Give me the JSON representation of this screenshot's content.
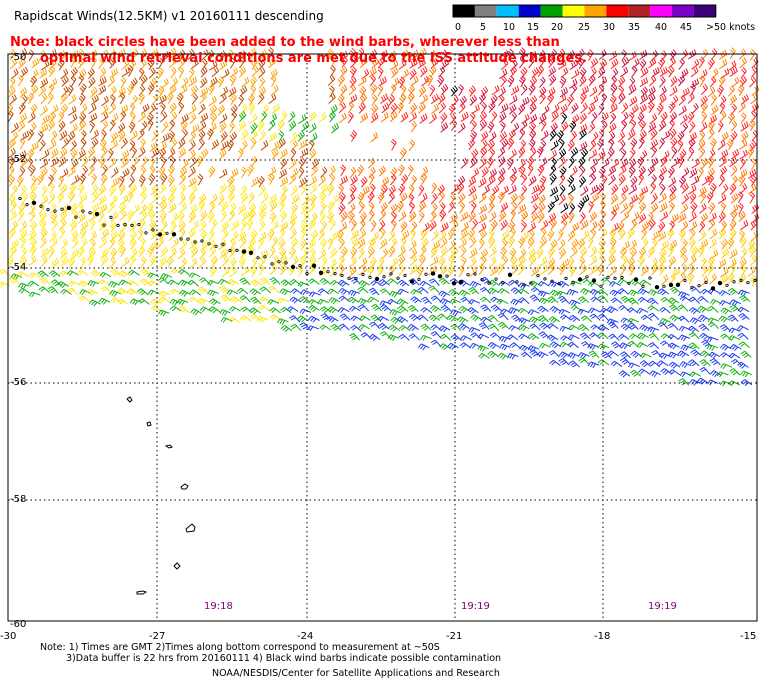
{
  "header": {
    "title": "Rapidscat Winds(12.5KM) v1 20160111 descending"
  },
  "note": {
    "line1": "Note: black circles have been added to the wind barbs, wherever less than",
    "line2": "optimal wind retrieval conditions are met due to the ISS attitude changes."
  },
  "color_scale": {
    "labels": [
      "0",
      "5",
      "10",
      "15",
      "20",
      "25",
      "30",
      "35",
      "40",
      "45",
      ">50 knots"
    ],
    "colors": [
      "#000000",
      "#808080",
      "#00bfff",
      "#0000cd",
      "#00a000",
      "#ffff00",
      "#ffa500",
      "#ff0000",
      "#b22222",
      "#ff00ff",
      "#7b00c8",
      "#3c0078"
    ]
  },
  "map": {
    "lon_range": [
      -30,
      -15
    ],
    "lat_range": [
      -50,
      -60
    ],
    "lat_labels": [
      "-50",
      "-52",
      "-54",
      "-56",
      "-58",
      "-60"
    ],
    "lon_labels": [
      "-30",
      "-27",
      "-24",
      "-21",
      "-18",
      "-15"
    ],
    "time_labels": [
      "19:18",
      "19:19",
      "19:19"
    ]
  },
  "footer": {
    "note_line1": "Note: 1) Times are GMT 2)Times along bottom correspond to measurement at ~50S",
    "note_line2": "3)Data buffer is 22 hrs from 20160111 4) Black wind barbs indicate possible contamination",
    "credit": "NOAA/NESDIS/Center for Satellite Applications and Research"
  }
}
